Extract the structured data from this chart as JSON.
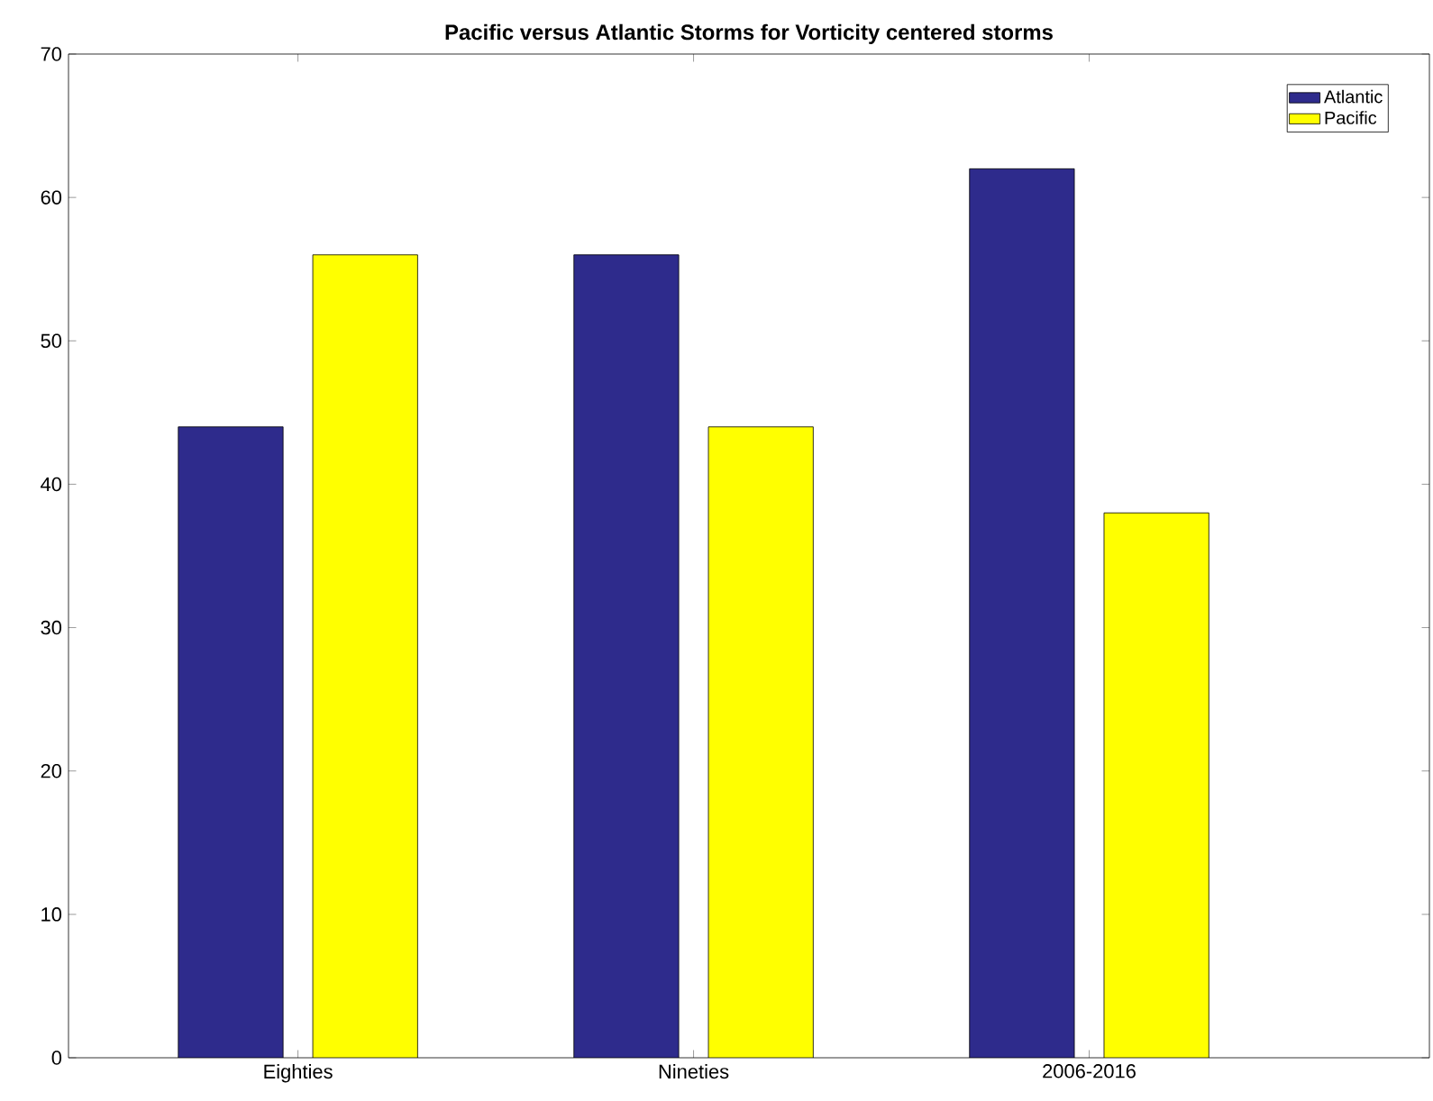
{
  "chart_data": {
    "type": "bar",
    "title": "Pacific versus Atlantic Storms for Vorticity centered storms",
    "categories": [
      "Eighties",
      "Nineties",
      "2006-2016"
    ],
    "series": [
      {
        "name": "Atlantic",
        "color": "#2e2b8c",
        "values": [
          44,
          56,
          62
        ]
      },
      {
        "name": "Pacific",
        "color": "#ffff00",
        "values": [
          56,
          44,
          38
        ]
      }
    ],
    "ylim": [
      0,
      70
    ],
    "yticks": [
      0,
      10,
      20,
      30,
      40,
      50,
      60,
      70
    ],
    "legend": "top right"
  }
}
